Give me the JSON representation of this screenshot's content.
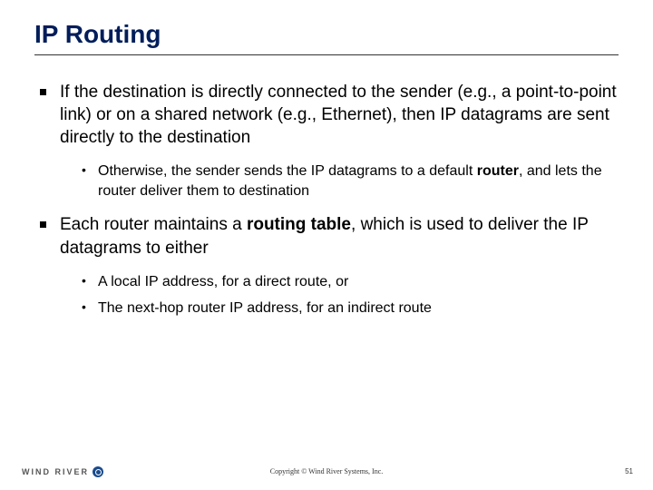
{
  "title": "IP Routing",
  "colors": {
    "title": "#001d5a",
    "text": "#000000",
    "rule": "#333333",
    "background": "#ffffff",
    "logo_badge": "#1a4b8c"
  },
  "bullets": [
    {
      "text": "If the destination is directly connected to the sender (e.g., a point-to-point link) or on a shared network (e.g., Ethernet), then IP datagrams are sent directly to the destination",
      "sub": [
        {
          "pre": "Otherwise, the sender sends the IP datagrams to a default ",
          "bold": "router",
          "post": ", and lets the router deliver them to destination"
        }
      ]
    },
    {
      "pre": "Each router maintains a ",
      "bold": "routing table",
      "post": ", which is used to deliver the IP datagrams to either",
      "sub": [
        {
          "text": "A local IP address, for a direct route, or"
        },
        {
          "text": "The next-hop router IP address, for an indirect route"
        }
      ]
    }
  ],
  "footer": {
    "logo_text": "WIND RIVER",
    "copyright": "Copyright  ©  Wind River Systems, Inc.",
    "page": "51"
  }
}
